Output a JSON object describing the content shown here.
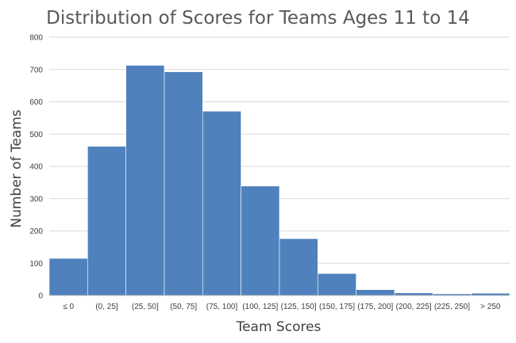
{
  "colors": {
    "bar": "#4f81bd",
    "grid": "#d9d9d9"
  },
  "chart_data": {
    "type": "bar",
    "title": "Distribution of Scores for Teams Ages 11 to 14",
    "xlabel": "Team Scores",
    "ylabel": "Number of Teams",
    "ylim": [
      0,
      800
    ],
    "yticks": [
      "0",
      "100",
      "200",
      "300",
      "400",
      "500",
      "600",
      "700",
      "800"
    ],
    "grid": true,
    "legend": "none",
    "categories": [
      "≤ 0",
      "(0, 25]",
      "(25, 50]",
      "(50, 75]",
      "(75, 100]",
      "(100, 125]",
      "(125, 150]",
      "(150, 175]",
      "(175, 200]",
      "(200, 225]",
      "(225, 250]",
      "> 250"
    ],
    "values": [
      115,
      462,
      713,
      693,
      571,
      339,
      176,
      68,
      18,
      8,
      5,
      7
    ]
  }
}
